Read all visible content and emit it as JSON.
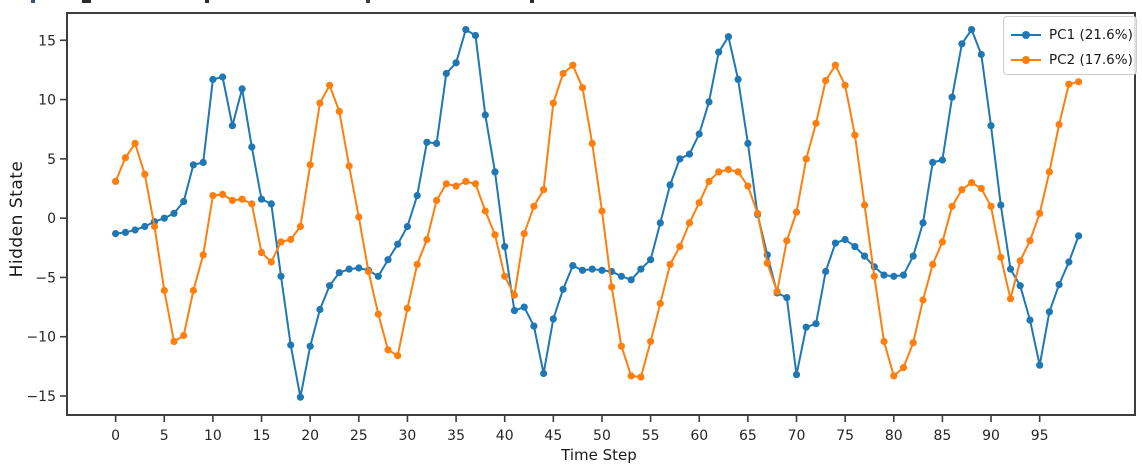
{
  "figure": {
    "ylabel": "Hidden State",
    "xlabel": "Time Step"
  },
  "legend": {
    "items": [
      {
        "label": "PC1 (21.6%)",
        "color": "#1f77b4"
      },
      {
        "label": "PC2 (17.6%)",
        "color": "#ff7f0e"
      }
    ]
  },
  "chart_data": {
    "type": "line",
    "title": "",
    "xlabel": "Time Step",
    "ylabel": "Hidden State",
    "x_start": 0,
    "x_step": 1,
    "n_points": 100,
    "x_ticks": [
      0,
      5,
      10,
      15,
      20,
      25,
      30,
      35,
      40,
      45,
      50,
      55,
      60,
      65,
      70,
      75,
      80,
      85,
      90,
      95
    ],
    "y_ticks": [
      -15,
      -10,
      -5,
      0,
      5,
      10,
      15
    ],
    "xlim": [
      -5.0,
      104.8
    ],
    "ylim": [
      -16.6,
      17.3
    ],
    "grid": false,
    "legend_position": "upper right",
    "marker": "circle",
    "series": [
      {
        "name": "PC1 (21.6%)",
        "color": "#1f77b4",
        "values": [
          -1.3,
          -1.2,
          -1.0,
          -0.7,
          -0.3,
          0.0,
          0.4,
          1.4,
          4.5,
          4.7,
          11.7,
          11.9,
          7.8,
          10.9,
          6.0,
          1.6,
          1.2,
          -4.9,
          -10.7,
          -15.1,
          -10.8,
          -7.7,
          -5.7,
          -4.6,
          -4.3,
          -4.2,
          -4.4,
          -4.9,
          -3.5,
          -2.2,
          -0.7,
          1.9,
          6.4,
          6.3,
          12.2,
          13.1,
          15.9,
          15.4,
          8.7,
          3.9,
          -2.4,
          -7.8,
          -7.5,
          -9.1,
          -13.1,
          -8.5,
          -6.0,
          -4.0,
          -4.4,
          -4.3,
          -4.4,
          -4.5,
          -4.9,
          -5.2,
          -4.3,
          -3.5,
          -0.4,
          2.8,
          5.0,
          5.4,
          7.1,
          9.8,
          14.0,
          15.3,
          11.7,
          6.3,
          0.3,
          -3.1,
          -6.3,
          -6.7,
          -13.2,
          -9.2,
          -8.9,
          -4.5,
          -2.1,
          -1.8,
          -2.4,
          -3.2,
          -4.1,
          -4.8,
          -4.9,
          -4.8,
          -3.2,
          -0.4,
          4.7,
          4.9,
          10.2,
          14.7,
          15.9,
          13.8,
          7.8,
          1.1,
          -4.3,
          -5.7,
          -8.6,
          -12.4,
          -7.9,
          -5.6,
          -3.7,
          -1.5
        ]
      },
      {
        "name": "PC2 (17.6%)",
        "color": "#ff7f0e",
        "values": [
          3.1,
          5.1,
          6.3,
          3.7,
          -0.7,
          -6.1,
          -10.4,
          -9.9,
          -6.1,
          -3.1,
          1.9,
          2.0,
          1.5,
          1.6,
          1.2,
          -2.9,
          -3.7,
          -2.0,
          -1.8,
          -0.7,
          4.5,
          9.7,
          11.2,
          9.0,
          4.4,
          0.1,
          -4.5,
          -8.1,
          -11.1,
          -11.6,
          -7.6,
          -3.9,
          -1.8,
          1.5,
          2.9,
          2.7,
          3.1,
          2.9,
          0.6,
          -1.4,
          -4.9,
          -6.5,
          -1.3,
          1.0,
          2.4,
          9.7,
          12.2,
          12.9,
          11.0,
          6.3,
          0.6,
          -5.8,
          -10.8,
          -13.3,
          -13.4,
          -10.4,
          -7.2,
          -3.9,
          -2.4,
          -0.4,
          1.3,
          3.1,
          3.9,
          4.1,
          3.9,
          2.7,
          0.4,
          -3.8,
          -6.2,
          -1.9,
          0.5,
          5.0,
          8.0,
          11.6,
          12.9,
          11.2,
          7.0,
          1.1,
          -4.9,
          -10.4,
          -13.3,
          -12.6,
          -10.5,
          -6.9,
          -3.9,
          -2.0,
          1.0,
          2.4,
          3.0,
          2.5,
          1.0,
          -3.3,
          -6.8,
          -3.6,
          -1.9,
          0.4,
          3.9,
          7.9,
          11.3,
          11.5
        ]
      }
    ]
  }
}
